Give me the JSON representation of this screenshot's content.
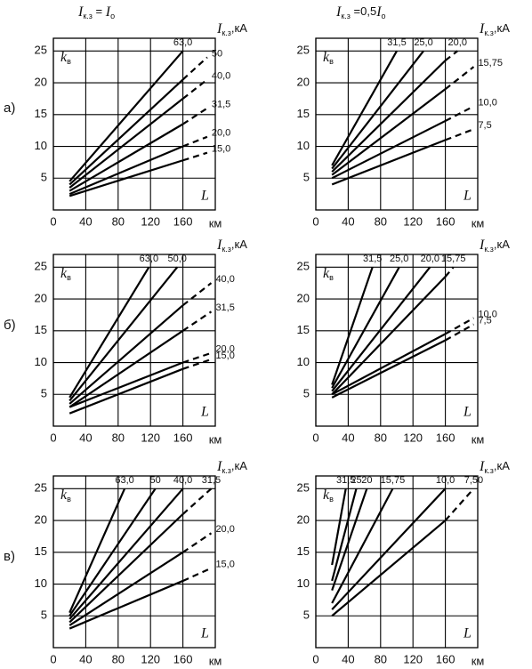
{
  "headers": [
    [
      {
        "text": "I",
        "style": "italic"
      },
      {
        "text": "к.з",
        "style": "sub"
      },
      {
        "text": " = ",
        "style": "normal"
      },
      {
        "text": "I",
        "style": "italic"
      },
      {
        "text": "о",
        "style": "sub"
      }
    ],
    [
      {
        "text": "I",
        "style": "italic"
      },
      {
        "text": "к.з",
        "style": "sub"
      },
      {
        "text": " =0,5",
        "style": "normal"
      },
      {
        "text": "I",
        "style": "italic"
      },
      {
        "text": "о",
        "style": "sub"
      }
    ]
  ],
  "row_labels": [
    "а)",
    "б)",
    "в)"
  ],
  "chart_data": [
    {
      "type": "line",
      "xlim": [
        0,
        200
      ],
      "ylim": [
        0,
        27
      ],
      "xticks": [
        0,
        40,
        80,
        120,
        160
      ],
      "yticks": [
        5,
        10,
        15,
        20,
        25
      ],
      "grid": true,
      "y_label": {
        "main": "k",
        "sub": "в"
      },
      "x_label": "L",
      "x_unit": "км",
      "series_unit": {
        "main": "I",
        "sub": "к.з",
        "rest": ",кА"
      },
      "series": [
        {
          "name": "63,0",
          "color": "#000000",
          "x": [
            20,
            160
          ],
          "values": [
            4.5,
            25
          ],
          "segment_styles": [
            "solid"
          ]
        },
        {
          "name": "50",
          "color": "#000000",
          "x": [
            20,
            160,
            190
          ],
          "values": [
            4,
            20.5,
            24
          ],
          "segment_styles": [
            "solid",
            "dashed"
          ]
        },
        {
          "name": "40,0",
          "color": "#000000",
          "x": [
            20,
            160,
            190
          ],
          "values": [
            3.5,
            17.5,
            20.5
          ],
          "segment_styles": [
            "solid",
            "dashed"
          ]
        },
        {
          "name": "31,5",
          "color": "#000000",
          "x": [
            20,
            160,
            190
          ],
          "values": [
            3,
            13.5,
            16
          ],
          "segment_styles": [
            "solid",
            "dashed"
          ]
        },
        {
          "name": "20,0",
          "color": "#000000",
          "x": [
            20,
            160,
            190
          ],
          "values": [
            2.5,
            10,
            11.5
          ],
          "segment_styles": [
            "solid",
            "dashed"
          ]
        },
        {
          "name": "15,0",
          "color": "#000000",
          "x": [
            20,
            160,
            190
          ],
          "values": [
            2.2,
            7.8,
            9
          ],
          "segment_styles": [
            "solid",
            "dashed"
          ]
        }
      ]
    },
    {
      "type": "line",
      "xlim": [
        0,
        200
      ],
      "ylim": [
        0,
        27
      ],
      "xticks": [
        0,
        40,
        80,
        120,
        160
      ],
      "yticks": [
        5,
        10,
        15,
        20,
        25
      ],
      "grid": true,
      "y_label": {
        "main": "k",
        "sub": "в"
      },
      "x_label": "L",
      "x_unit": "км",
      "series_unit": {
        "main": "I",
        "sub": "к.з",
        "rest": ",кА"
      },
      "series": [
        {
          "name": "31,5",
          "color": "#000000",
          "x": [
            20,
            100
          ],
          "values": [
            7,
            25
          ],
          "segment_styles": [
            "solid"
          ]
        },
        {
          "name": "25,0",
          "color": "#000000",
          "x": [
            20,
            133
          ],
          "values": [
            6.5,
            25
          ],
          "segment_styles": [
            "solid"
          ]
        },
        {
          "name": "20,0",
          "color": "#000000",
          "x": [
            20,
            160,
            175
          ],
          "values": [
            6,
            23.5,
            25
          ],
          "segment_styles": [
            "solid",
            "dashed"
          ]
        },
        {
          "name": "15,75",
          "color": "#000000",
          "x": [
            20,
            160,
            195
          ],
          "values": [
            5.5,
            19,
            22.5
          ],
          "segment_styles": [
            "solid",
            "dashed"
          ]
        },
        {
          "name": "10,0",
          "color": "#000000",
          "x": [
            20,
            160,
            195
          ],
          "values": [
            5,
            14,
            16.3
          ],
          "segment_styles": [
            "solid",
            "dashed"
          ]
        },
        {
          "name": "7,5",
          "color": "#000000",
          "x": [
            20,
            160,
            195
          ],
          "values": [
            4,
            11,
            12.7
          ],
          "segment_styles": [
            "solid",
            "dashed"
          ]
        }
      ]
    },
    {
      "type": "line",
      "xlim": [
        0,
        200
      ],
      "ylim": [
        0,
        27
      ],
      "xticks": [
        0,
        40,
        80,
        120,
        160
      ],
      "yticks": [
        5,
        10,
        15,
        20,
        25
      ],
      "grid": true,
      "y_label": {
        "main": "k",
        "sub": "в"
      },
      "x_label": "L",
      "x_unit": "км",
      "series_unit": {
        "main": "I",
        "sub": "к.з",
        "rest": ",кА"
      },
      "series": [
        {
          "name": "63,0",
          "color": "#000000",
          "x": [
            20,
            118
          ],
          "values": [
            4.5,
            25
          ],
          "segment_styles": [
            "solid"
          ]
        },
        {
          "name": "50,0",
          "color": "#000000",
          "x": [
            20,
            153
          ],
          "values": [
            4,
            25
          ],
          "segment_styles": [
            "solid"
          ]
        },
        {
          "name": "40,0",
          "color": "#000000",
          "x": [
            20,
            160,
            195
          ],
          "values": [
            3.5,
            19,
            22.5
          ],
          "segment_styles": [
            "solid",
            "dashed"
          ]
        },
        {
          "name": "31,5",
          "color": "#000000",
          "x": [
            20,
            160,
            195
          ],
          "values": [
            3,
            15,
            18
          ],
          "segment_styles": [
            "solid",
            "dashed"
          ]
        },
        {
          "name": "20,0",
          "color": "#000000",
          "x": [
            20,
            160,
            195
          ],
          "values": [
            3,
            10,
            11.5
          ],
          "segment_styles": [
            "solid",
            "dashed"
          ]
        },
        {
          "name": "15,0",
          "color": "#000000",
          "x": [
            20,
            160,
            195
          ],
          "values": [
            2,
            9,
            10.5
          ],
          "segment_styles": [
            "solid",
            "dashed"
          ]
        }
      ]
    },
    {
      "type": "line",
      "xlim": [
        0,
        200
      ],
      "ylim": [
        0,
        27
      ],
      "xticks": [
        0,
        40,
        80,
        120,
        160
      ],
      "yticks": [
        5,
        10,
        15,
        20,
        25
      ],
      "grid": true,
      "y_label": {
        "main": "k",
        "sub": "в"
      },
      "x_label": "L",
      "x_unit": "км",
      "series_unit": {
        "main": "I",
        "sub": "к.з",
        "rest": ",кА"
      },
      "series": [
        {
          "name": "31,5",
          "color": "#000000",
          "x": [
            20,
            70
          ],
          "values": [
            6.5,
            25
          ],
          "segment_styles": [
            "solid"
          ]
        },
        {
          "name": "25,0",
          "color": "#000000",
          "x": [
            20,
            103
          ],
          "values": [
            6,
            25
          ],
          "segment_styles": [
            "solid"
          ]
        },
        {
          "name": "20,0",
          "color": "#000000",
          "x": [
            20,
            141
          ],
          "values": [
            5.5,
            25
          ],
          "segment_styles": [
            "solid"
          ]
        },
        {
          "name": "15,75",
          "color": "#000000",
          "x": [
            20,
            160,
            170
          ],
          "values": [
            5,
            23.5,
            25
          ],
          "segment_styles": [
            "solid",
            "dashed"
          ]
        },
        {
          "name": "10,0",
          "color": "#000000",
          "x": [
            20,
            160,
            195
          ],
          "values": [
            5,
            14.5,
            17
          ],
          "segment_styles": [
            "solid",
            "dashed"
          ]
        },
        {
          "name": "7,5",
          "color": "#000000",
          "x": [
            20,
            160,
            195
          ],
          "values": [
            4.5,
            13.5,
            16
          ],
          "segment_styles": [
            "solid",
            "dashed"
          ]
        }
      ]
    },
    {
      "type": "line",
      "xlim": [
        0,
        200
      ],
      "ylim": [
        0,
        27
      ],
      "xticks": [
        0,
        40,
        80,
        120,
        160
      ],
      "yticks": [
        5,
        10,
        15,
        20,
        25
      ],
      "grid": true,
      "y_label": {
        "main": "k",
        "sub": "в"
      },
      "x_label": "L",
      "x_unit": "км",
      "series_unit": {
        "main": "I",
        "sub": "к.з",
        "rest": ",кА"
      },
      "series": [
        {
          "name": "63,0",
          "color": "#000000",
          "x": [
            20,
            88
          ],
          "values": [
            5.5,
            25
          ],
          "segment_styles": [
            "solid"
          ]
        },
        {
          "name": "50",
          "color": "#000000",
          "x": [
            20,
            126
          ],
          "values": [
            5,
            25
          ],
          "segment_styles": [
            "solid"
          ]
        },
        {
          "name": "40,0",
          "color": "#000000",
          "x": [
            20,
            160
          ],
          "values": [
            4.5,
            25
          ],
          "segment_styles": [
            "solid"
          ]
        },
        {
          "name": "31,5",
          "color": "#000000",
          "x": [
            20,
            160,
            195
          ],
          "values": [
            4,
            21,
            25
          ],
          "segment_styles": [
            "solid",
            "dashed"
          ]
        },
        {
          "name": "20,0",
          "color": "#000000",
          "x": [
            20,
            160,
            195
          ],
          "values": [
            3.5,
            15,
            18
          ],
          "segment_styles": [
            "solid",
            "dashed"
          ]
        },
        {
          "name": "15,0",
          "color": "#000000",
          "x": [
            20,
            160,
            195
          ],
          "values": [
            3,
            10.5,
            12.5
          ],
          "segment_styles": [
            "solid",
            "dashed"
          ]
        }
      ]
    },
    {
      "type": "line",
      "xlim": [
        0,
        200
      ],
      "ylim": [
        0,
        27
      ],
      "xticks": [
        0,
        40,
        80,
        120,
        160
      ],
      "yticks": [
        5,
        10,
        15,
        20,
        25
      ],
      "grid": true,
      "y_label": {
        "main": "k",
        "sub": "в"
      },
      "x_label": "L",
      "x_unit": "км",
      "series_unit": {
        "main": "I",
        "sub": "к.з",
        "rest": ",кА"
      },
      "series": [
        {
          "name": "31,5",
          "color": "#000000",
          "x": [
            20,
            37
          ],
          "values": [
            13,
            25
          ],
          "segment_styles": [
            "solid"
          ]
        },
        {
          "name": "25",
          "color": "#000000",
          "x": [
            20,
            50
          ],
          "values": [
            10.5,
            25
          ],
          "segment_styles": [
            "solid"
          ]
        },
        {
          "name": "20",
          "color": "#000000",
          "x": [
            20,
            63
          ],
          "values": [
            9,
            25
          ],
          "segment_styles": [
            "solid"
          ]
        },
        {
          "name": "15,75",
          "color": "#000000",
          "x": [
            20,
            95
          ],
          "values": [
            7,
            25
          ],
          "segment_styles": [
            "solid"
          ]
        },
        {
          "name": "10,0",
          "color": "#000000",
          "x": [
            20,
            160
          ],
          "values": [
            6,
            25
          ],
          "segment_styles": [
            "solid"
          ]
        },
        {
          "name": "7,50",
          "color": "#000000",
          "x": [
            20,
            160,
            195
          ],
          "values": [
            5,
            20,
            25
          ],
          "segment_styles": [
            "solid",
            "dashed"
          ]
        }
      ]
    }
  ]
}
